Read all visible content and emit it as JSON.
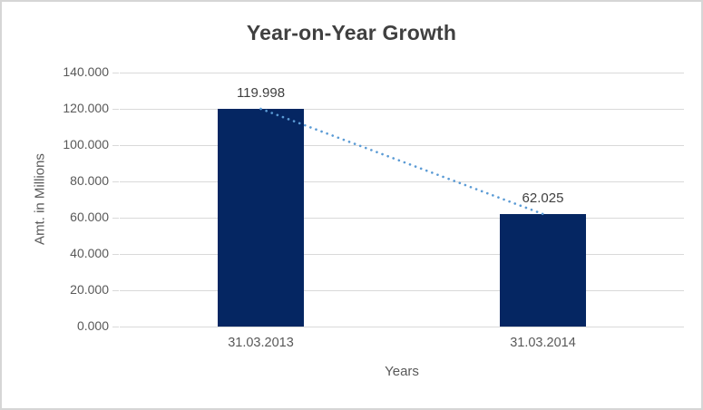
{
  "window": {
    "background": "#ffffff",
    "border_color": "#d6d6d6"
  },
  "chart_data": {
    "type": "bar",
    "title": "Year-on-Year Growth",
    "xlabel": "Years",
    "ylabel": "Amt. in Millions",
    "categories": [
      "31.03.2013",
      "31.03.2014"
    ],
    "values": [
      119.998,
      62.025
    ],
    "data_labels": [
      "119.998",
      "62.025"
    ],
    "ylim": [
      0,
      140
    ],
    "ytick_step": 20,
    "ytick_labels": [
      "0.000",
      "20.000",
      "40.000",
      "60.000",
      "80.000",
      "100.000",
      "120.000",
      "140.000"
    ],
    "grid": true,
    "legend_position": "none",
    "bar_color": "#052662",
    "gridline_color": "#d9d9d9",
    "axis_text_color": "#595959",
    "title_color": "#404040",
    "data_label_color": "#404040",
    "trendline": {
      "type": "linear",
      "style": "dotted",
      "color": "#5b9bd5"
    }
  }
}
